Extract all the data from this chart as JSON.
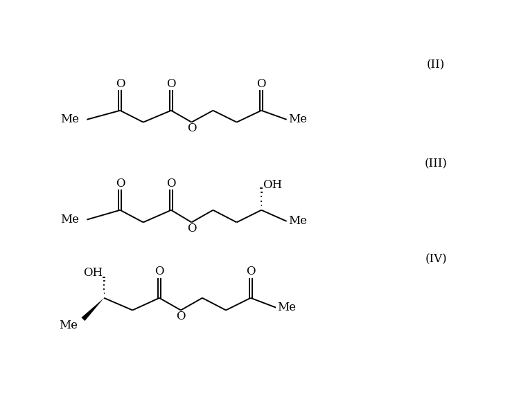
{
  "background_color": "#ffffff",
  "label_II": "(II)",
  "label_III": "(III)",
  "label_IV": "(IV)",
  "font_size_label": 12,
  "font_size_atom": 12,
  "line_width": 1.4,
  "fig_width": 7.36,
  "fig_height": 5.74
}
